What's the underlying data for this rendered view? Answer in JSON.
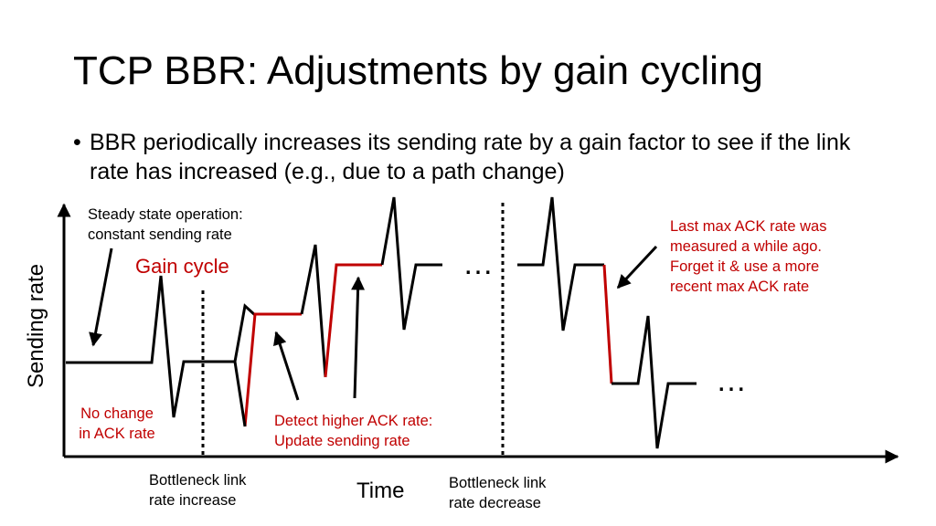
{
  "slide": {
    "title": "TCP BBR: Adjustments by gain cycling",
    "bullet": "BBR periodically increases its sending rate by a gain factor to see if the link rate has increased (e.g., due to a path change)"
  },
  "diagram": {
    "y_axis_label": "Sending rate",
    "x_axis_label": "Time",
    "ellipsis": "…",
    "annotations": {
      "steady_state_line1": "Steady state operation:",
      "steady_state_line2": "constant sending rate",
      "gain_cycle": "Gain cycle",
      "no_change_line1": "No change",
      "no_change_line2": "in ACK rate",
      "detect_line1": "Detect higher ACK rate:",
      "detect_line2": "Update sending rate",
      "increase_line1": "Bottleneck link",
      "increase_line2": "rate increase",
      "decrease_line1": "Bottleneck link",
      "decrease_line2": "rate decrease",
      "last_max_line1": "Last max ACK rate was",
      "last_max_line2": "measured a while ago.",
      "last_max_line3": "Forget it & use a more",
      "last_max_line4": "recent max ACK rate"
    },
    "colors": {
      "highlight": "#c00000",
      "line": "#000000"
    }
  }
}
